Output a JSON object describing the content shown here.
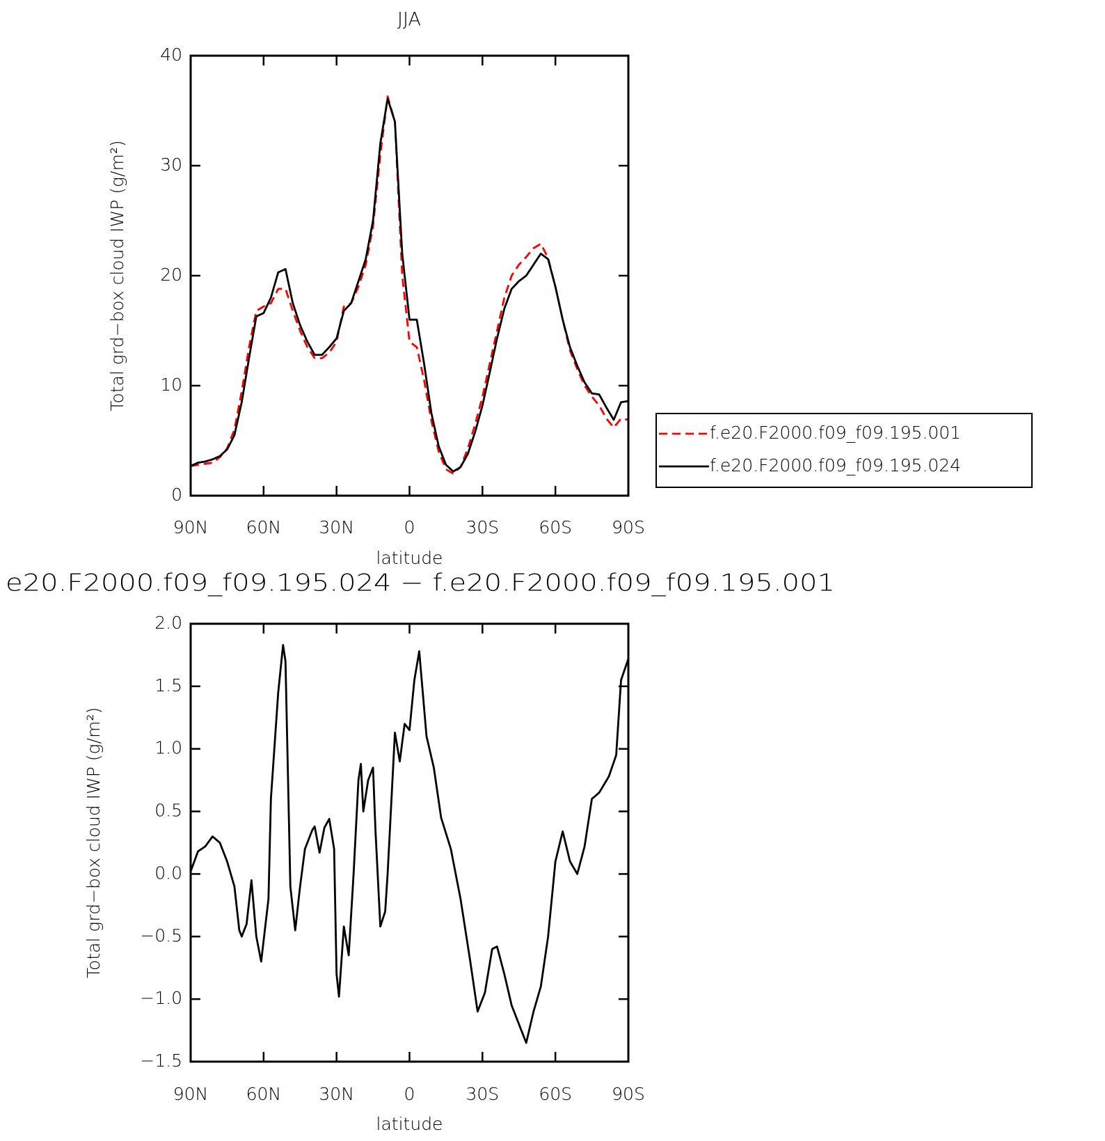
{
  "chart_data": [
    {
      "type": "line",
      "title": "JJA",
      "xlabel": "latitude",
      "ylabel": "Total grd−box cloud IWP (g/m²)",
      "xlim": [
        90,
        -90
      ],
      "xticks": [
        {
          "value": 90,
          "label": "90N"
        },
        {
          "value": 60,
          "label": "60N"
        },
        {
          "value": 30,
          "label": "30N"
        },
        0,
        {
          "value": -30,
          "label": "30S"
        },
        {
          "value": -60,
          "label": "60S"
        },
        {
          "value": -90,
          "label": "90S"
        }
      ],
      "ylim": [
        0,
        40
      ],
      "yticks": [
        0,
        10,
        20,
        30,
        40
      ],
      "legend": "right",
      "x": [
        90,
        87,
        84,
        81,
        78,
        75,
        72,
        69,
        66,
        63,
        60,
        57,
        54,
        51,
        48,
        45,
        42,
        39,
        36,
        33,
        30,
        27,
        24,
        21,
        18,
        15,
        12,
        9,
        6,
        3,
        0,
        -3,
        -6,
        -9,
        -12,
        -15,
        -18,
        -21,
        -24,
        -27,
        -30,
        -33,
        -36,
        -39,
        -42,
        -45,
        -48,
        -51,
        -54,
        -57,
        -60,
        -63,
        -66,
        -69,
        -72,
        -75,
        -78,
        -81,
        -84,
        -87,
        -90
      ],
      "series": [
        {
          "name": "f.e20.F2000.f09_f09.195.001",
          "color": "#ff0000",
          "style": "dashed",
          "values": [
            2.7,
            2.8,
            2.9,
            3.0,
            3.5,
            4.3,
            6.0,
            9.5,
            13.5,
            16.8,
            17.2,
            17.5,
            18.8,
            18.8,
            16.8,
            15.0,
            13.5,
            12.5,
            12.5,
            13.0,
            14.0,
            17.2,
            17.5,
            19.0,
            21.0,
            24.5,
            31,
            36.3,
            34,
            20,
            14.0,
            13.5,
            10.5,
            6.8,
            4.0,
            2.4,
            2.0,
            2.6,
            4.3,
            6.5,
            9.0,
            12.0,
            15.0,
            18.0,
            20.0,
            21.0,
            21.7,
            22.5,
            22.9,
            21.6,
            19.0,
            16.0,
            13.2,
            11.5,
            10.0,
            9.0,
            8.2,
            7.0,
            6.2,
            7.0,
            6.9
          ]
        },
        {
          "name": "f.e20.F2000.f09_f09.195.024",
          "color": "#000000",
          "style": "solid",
          "values": [
            2.7,
            3.0,
            3.1,
            3.3,
            3.6,
            4.2,
            5.5,
            8.5,
            12.5,
            16.3,
            16.6,
            18.0,
            20.3,
            20.6,
            17.5,
            15.5,
            14.0,
            12.8,
            12.8,
            13.5,
            14.3,
            16.8,
            17.5,
            19.5,
            21.5,
            25,
            32,
            36.1,
            34,
            22,
            16,
            16,
            12,
            7.5,
            4.5,
            2.8,
            2.2,
            2.6,
            3.8,
            5.8,
            8.2,
            11.2,
            14.3,
            17.0,
            18.8,
            19.5,
            20.0,
            21.0,
            22.0,
            21.5,
            19.0,
            16.0,
            13.5,
            11.8,
            10.3,
            9.3,
            9.2,
            8.0,
            6.9,
            8.5,
            8.6
          ]
        }
      ]
    },
    {
      "type": "line",
      "title": "e20.F2000.f09_f09.195.024 − f.e20.F2000.f09_f09.195.001",
      "xlabel": "latitude",
      "ylabel": "Total grd−box cloud IWP (g/m²)",
      "xlim": [
        90,
        -90
      ],
      "xticks": [
        {
          "value": 90,
          "label": "90N"
        },
        {
          "value": 60,
          "label": "60N"
        },
        {
          "value": 30,
          "label": "30N"
        },
        0,
        {
          "value": -30,
          "label": "30S"
        },
        {
          "value": -60,
          "label": "60S"
        },
        {
          "value": -90,
          "label": "90S"
        }
      ],
      "ylim": [
        -1.5,
        2.0
      ],
      "yticks": [
        {
          "value": -1.5,
          "label": "−1.5"
        },
        {
          "value": -1.0,
          "label": "−1.0"
        },
        {
          "value": -0.5,
          "label": "−0.5"
        },
        {
          "value": 0,
          "label": "0.0"
        },
        {
          "value": 0.5,
          "label": "0.5"
        },
        {
          "value": 1.0,
          "label": "1.0"
        },
        {
          "value": 1.5,
          "label": "1.5"
        },
        {
          "value": 2.0,
          "label": "2.0"
        }
      ],
      "x": [
        90,
        87,
        84,
        81,
        78,
        75,
        72,
        70,
        69,
        67,
        65,
        63,
        61,
        58,
        57,
        54,
        52,
        51,
        49,
        47,
        45,
        43,
        40,
        39,
        37,
        35,
        33,
        31,
        30,
        29,
        27,
        25,
        23,
        21,
        20,
        19,
        17,
        15,
        14,
        12,
        10,
        9,
        6,
        4,
        2,
        0,
        -2,
        -4,
        -7,
        -10,
        -13,
        -17,
        -21,
        -25,
        -28,
        -31,
        -34,
        -36,
        -39,
        -42,
        -45,
        -48,
        -51,
        -54,
        -57,
        -60,
        -63,
        -66,
        -69,
        -72,
        -75,
        -78,
        -82,
        -85,
        -87,
        -90
      ],
      "series": [
        {
          "color": "#000000",
          "style": "solid",
          "values": [
            0.02,
            0.18,
            0.22,
            0.3,
            0.25,
            0.1,
            -0.1,
            -0.45,
            -0.5,
            -0.4,
            -0.05,
            -0.5,
            -0.7,
            -0.2,
            0.6,
            1.45,
            1.83,
            1.7,
            -0.1,
            -0.45,
            -0.1,
            0.2,
            0.35,
            0.38,
            0.17,
            0.37,
            0.44,
            0.2,
            -0.8,
            -0.98,
            -0.42,
            -0.65,
            0.0,
            0.75,
            0.88,
            0.5,
            0.75,
            0.85,
            0.35,
            -0.42,
            -0.3,
            0.0,
            1.13,
            0.9,
            1.2,
            1.15,
            1.55,
            1.78,
            1.1,
            0.85,
            0.45,
            0.2,
            -0.2,
            -0.7,
            -1.1,
            -0.95,
            -0.6,
            -0.58,
            -0.8,
            -1.05,
            -1.2,
            -1.35,
            -1.1,
            -0.9,
            -0.5,
            0.1,
            0.34,
            0.1,
            0.0,
            0.22,
            0.6,
            0.65,
            0.78,
            0.95,
            1.55,
            1.72
          ]
        }
      ]
    }
  ]
}
